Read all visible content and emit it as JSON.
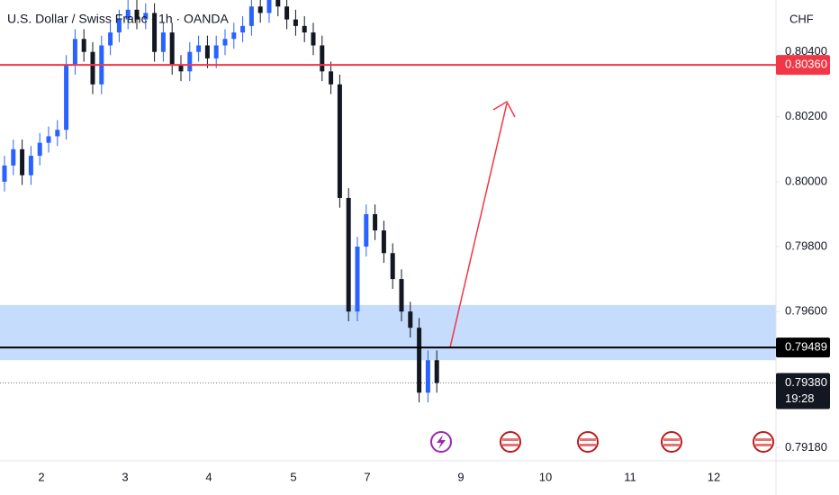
{
  "chart_data": {
    "type": "candlestick",
    "title": "U.S. Dollar / Swiss Franc · 1h · OANDA",
    "currency": "CHF",
    "up_color": "#2962ff",
    "down_color": "#131722",
    "open": [
      0.8,
      0.8005,
      0.801,
      0.8002,
      0.8008,
      0.8012,
      0.8014,
      0.8016,
      0.8036,
      0.8044,
      0.804,
      0.803,
      0.8042,
      0.8046,
      0.805,
      0.8053,
      0.805,
      0.8052,
      0.804,
      0.8046,
      0.8036,
      0.8034,
      0.804,
      0.8042,
      0.8038,
      0.8042,
      0.8044,
      0.8046,
      0.8048,
      0.8054,
      0.8052,
      0.8056,
      0.8054,
      0.805,
      0.8048,
      0.8046,
      0.8042,
      0.8034,
      0.803,
      0.7995,
      0.796,
      0.798,
      0.799,
      0.7985,
      0.7978,
      0.797,
      0.796,
      0.7955,
      0.7935,
      0.7945
    ],
    "high": [
      0.8008,
      0.8013,
      0.8013,
      0.8011,
      0.8015,
      0.8017,
      0.8019,
      0.8039,
      0.8047,
      0.8047,
      0.8043,
      0.8045,
      0.8049,
      0.8053,
      0.8056,
      0.8056,
      0.8055,
      0.8055,
      0.8049,
      0.8049,
      0.8039,
      0.8043,
      0.8045,
      0.8045,
      0.8045,
      0.8047,
      0.8049,
      0.8051,
      0.8057,
      0.8057,
      0.8059,
      0.8059,
      0.8057,
      0.8053,
      0.8051,
      0.8049,
      0.8045,
      0.8037,
      0.8033,
      0.7998,
      0.7983,
      0.7993,
      0.7993,
      0.7988,
      0.7981,
      0.7973,
      0.7963,
      0.7958,
      0.7948,
      0.7948
    ],
    "low": [
      0.7997,
      0.8002,
      0.7999,
      0.7999,
      0.8005,
      0.8009,
      0.8011,
      0.8013,
      0.8033,
      0.8037,
      0.8027,
      0.8027,
      0.8039,
      0.8043,
      0.8047,
      0.8047,
      0.8047,
      0.8037,
      0.8037,
      0.8033,
      0.8031,
      0.8031,
      0.8037,
      0.8035,
      0.8035,
      0.8039,
      0.8041,
      0.8043,
      0.8045,
      0.8049,
      0.8049,
      0.8051,
      0.8047,
      0.8045,
      0.8043,
      0.8039,
      0.8031,
      0.8027,
      0.7992,
      0.7957,
      0.7957,
      0.7977,
      0.7982,
      0.7975,
      0.7967,
      0.7957,
      0.7952,
      0.7932,
      0.7932,
      0.7935
    ],
    "close": [
      0.8005,
      0.801,
      0.8002,
      0.8008,
      0.8012,
      0.8014,
      0.8016,
      0.8036,
      0.8044,
      0.804,
      0.803,
      0.8042,
      0.8046,
      0.805,
      0.8053,
      0.805,
      0.8052,
      0.804,
      0.8046,
      0.8036,
      0.8034,
      0.804,
      0.8042,
      0.8038,
      0.8042,
      0.8044,
      0.8046,
      0.8048,
      0.8054,
      0.8052,
      0.8056,
      0.8054,
      0.805,
      0.8048,
      0.8046,
      0.8042,
      0.8034,
      0.803,
      0.7995,
      0.796,
      0.798,
      0.799,
      0.7985,
      0.7978,
      0.797,
      0.796,
      0.7955,
      0.7935,
      0.7945,
      0.7938
    ],
    "x_labels": [
      "2",
      "3",
      "4",
      "5",
      "7",
      "9",
      "10",
      "11",
      "12"
    ],
    "ylim": [
      0.7914,
      0.8056
    ],
    "yticks": [
      {
        "value": 0.804,
        "label": "0.80400"
      },
      {
        "value": 0.802,
        "label": "0.80200"
      },
      {
        "value": 0.8,
        "label": "0.80000"
      },
      {
        "value": 0.798,
        "label": "0.79800"
      },
      {
        "value": 0.796,
        "label": "0.79600"
      },
      {
        "value": 0.7918,
        "label": "0.79180"
      }
    ],
    "zone": {
      "from": 0.7945,
      "to": 0.7962,
      "color": "#bbd6fb"
    },
    "levels": [
      {
        "value": 0.8036,
        "label": "0.80360",
        "color": "#f23645"
      },
      {
        "value": 0.79489,
        "label": "0.79489",
        "color": "#000000"
      }
    ],
    "last_price": {
      "value": 0.7938,
      "label": "0.79380",
      "countdown": "19:28"
    }
  }
}
